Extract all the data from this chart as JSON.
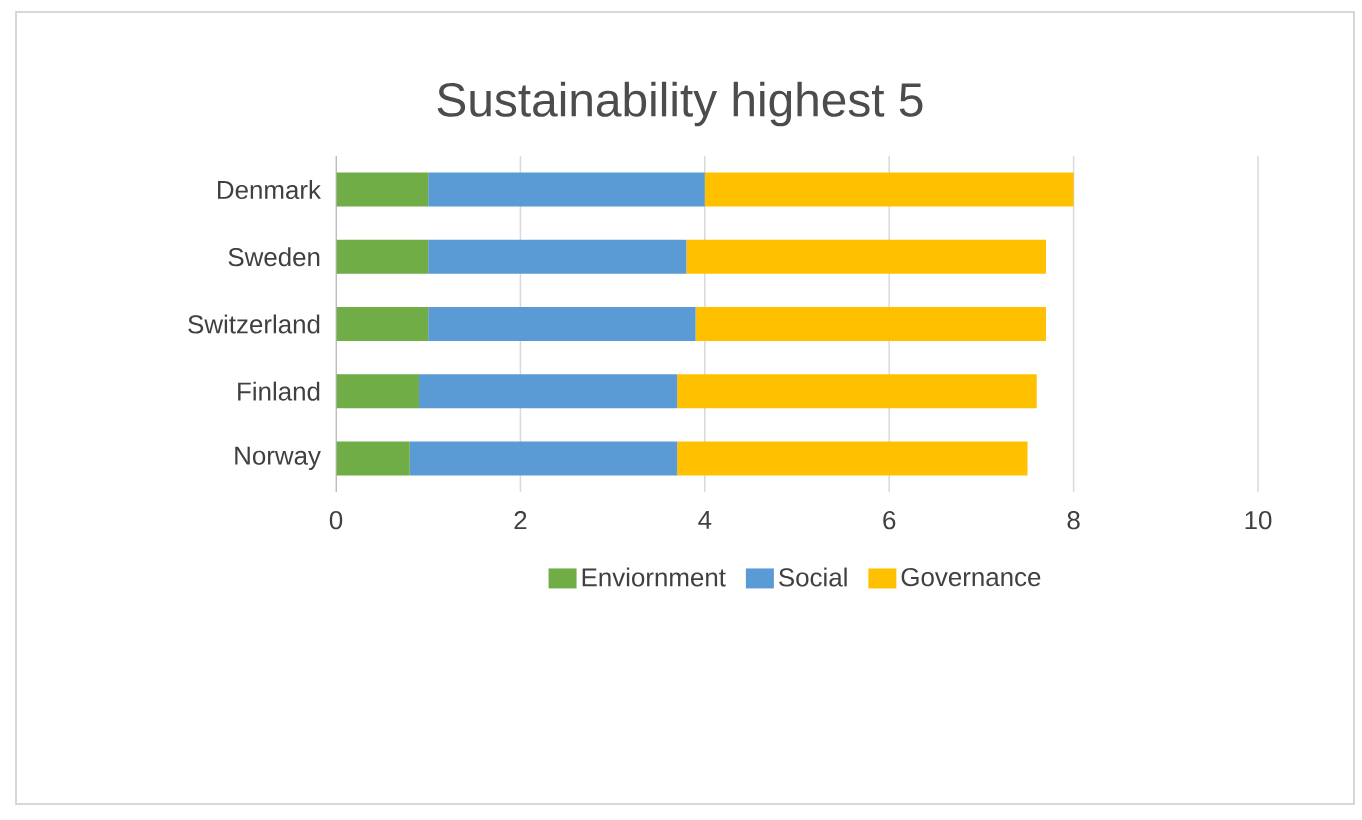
{
  "chart_data": {
    "type": "bar",
    "orientation": "horizontal",
    "stacked": true,
    "title": "Sustainability highest 5",
    "categories": [
      "Denmark",
      "Sweden",
      "Switzerland",
      "Finland",
      "Norway"
    ],
    "series": [
      {
        "name": "Enviornment",
        "color": "#70ad47",
        "values": [
          1.0,
          1.0,
          1.0,
          0.9,
          0.8
        ]
      },
      {
        "name": "Social",
        "color": "#5b9bd5",
        "values": [
          3.0,
          2.8,
          2.9,
          2.8,
          2.9
        ]
      },
      {
        "name": "Governance",
        "color": "#ffc000",
        "values": [
          4.0,
          3.9,
          3.8,
          3.9,
          3.8
        ]
      }
    ],
    "xlim": [
      0,
      10
    ],
    "xticks": [
      0,
      2,
      4,
      6,
      8,
      10
    ],
    "grid": "x",
    "legend": "bottom"
  }
}
